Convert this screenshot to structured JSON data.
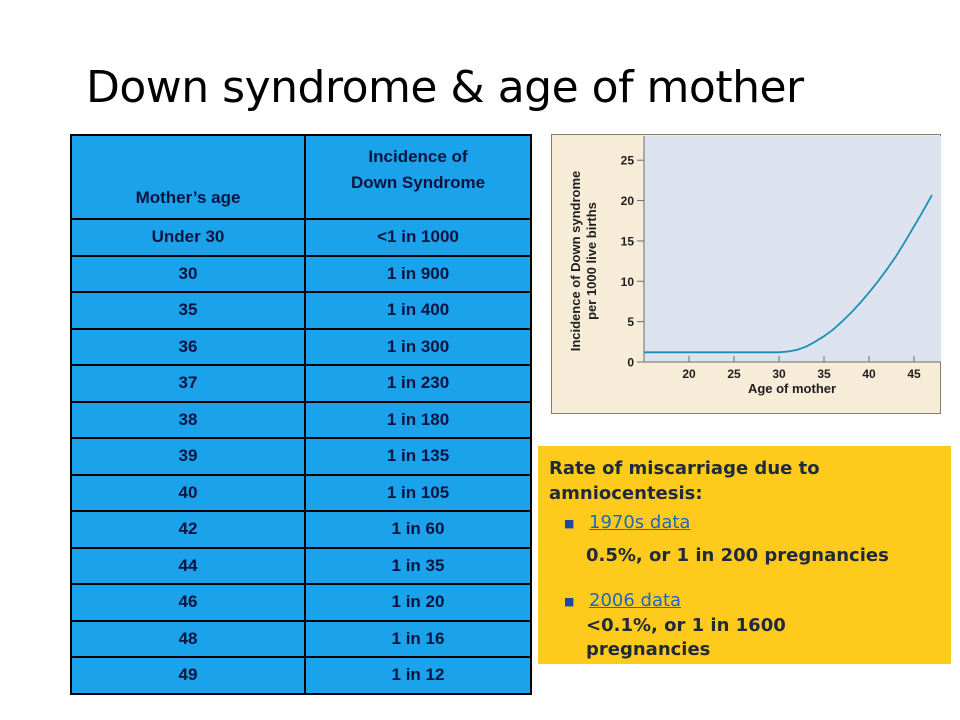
{
  "title": "Down syndrome & age of mother",
  "table": {
    "col1_header": "Mother’s age",
    "col2_header_line1": "Incidence of",
    "col2_header_line2": "Down Syndrome",
    "rows": [
      {
        "age": "Under 30",
        "incidence": "<1 in 1000"
      },
      {
        "age": "30",
        "incidence": "1 in 900"
      },
      {
        "age": "35",
        "incidence": "1 in 400"
      },
      {
        "age": "36",
        "incidence": "1 in 300"
      },
      {
        "age": "37",
        "incidence": "1 in 230"
      },
      {
        "age": "38",
        "incidence": "1 in 180"
      },
      {
        "age": "39",
        "incidence": "1 in 135"
      },
      {
        "age": "40",
        "incidence": "1 in 105"
      },
      {
        "age": "42",
        "incidence": "1 in 60"
      },
      {
        "age": "44",
        "incidence": "1 in 35"
      },
      {
        "age": "46",
        "incidence": "1 in 20"
      },
      {
        "age": "48",
        "incidence": "1 in 16"
      },
      {
        "age": "49",
        "incidence": "1 in 12"
      }
    ]
  },
  "graph": {
    "ylabel_line1": "Incidence of Down syndrome",
    "ylabel_line2": "per 1000 live births",
    "xlabel": "Age of mother",
    "x_ticks": [
      "20",
      "25",
      "30",
      "35",
      "40",
      "45"
    ],
    "y_ticks": [
      "0",
      "5",
      "10",
      "15",
      "20",
      "25"
    ]
  },
  "chart_data": {
    "type": "line",
    "title": "",
    "xlabel": "Age of mother",
    "ylabel": "Incidence of Down syndrome per 1000 live births",
    "xlim": [
      15,
      48
    ],
    "ylim": [
      0,
      28
    ],
    "x_ticks": [
      20,
      25,
      30,
      35,
      40,
      45
    ],
    "y_ticks": [
      0,
      5,
      10,
      15,
      20,
      25
    ],
    "grid": false,
    "series": [
      {
        "x": [
          15,
          20,
          25,
          30,
          31,
          32,
          33,
          34,
          35,
          36,
          37,
          38,
          39,
          40,
          41,
          42,
          43,
          44,
          45,
          46,
          47
        ],
        "y": [
          1.2,
          1.2,
          1.2,
          1.2,
          1.3,
          1.5,
          1.9,
          2.5,
          3.2,
          4.0,
          5.0,
          6.1,
          7.3,
          8.6,
          10.0,
          11.5,
          13.1,
          14.9,
          16.8,
          18.7,
          20.7
        ]
      }
    ],
    "colors": {
      "line": "#1a8fb8",
      "plot_bg": "#dde3ee",
      "panel_bg": "#f6ecd8"
    }
  },
  "info": {
    "heading_line1": "Rate of miscarriage due to",
    "heading_line2": "amniocentesis:",
    "bullet_icon": "square-bullet",
    "item1_link": "1970s data",
    "item1_text": "0.5%, or 1 in 200 pregnancies",
    "item2_link": "2006 data",
    "item2_text_line1": "<0.1%, or 1 in 1600",
    "item2_text_line2": "pregnancies"
  },
  "colors": {
    "table_bg": "#1aa3ea",
    "info_bg": "#fecb1d",
    "link": "#2266bb"
  }
}
